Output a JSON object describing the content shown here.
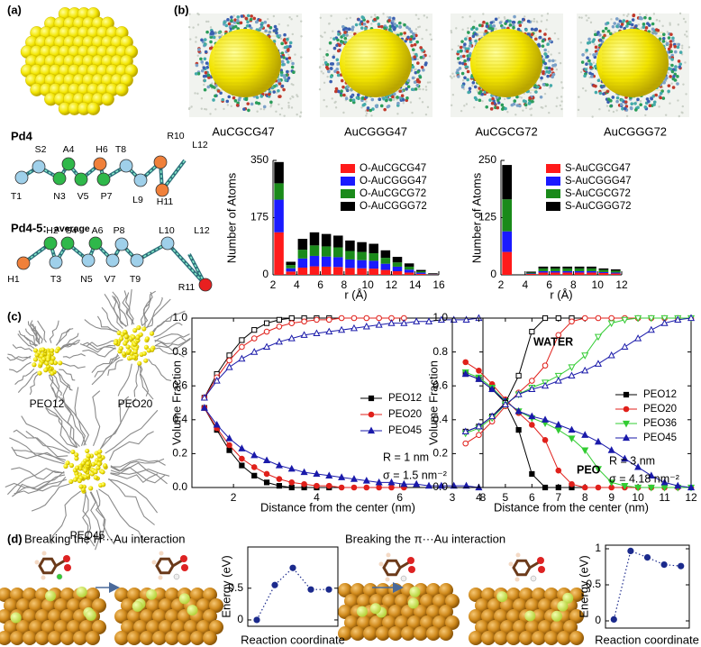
{
  "panels": {
    "a": "(a)",
    "b": "(b)",
    "c": "(c)",
    "d": "(d)"
  },
  "peptides": [
    {
      "title": "Pd4",
      "residues": [
        {
          "label": "T1",
          "color": "#9fd0ea"
        },
        {
          "label": "S2",
          "color": "#9fd0ea"
        },
        {
          "label": "N3",
          "color": "#2fb84a"
        },
        {
          "label": "A4",
          "color": "#2fb84a"
        },
        {
          "label": "V5",
          "color": "#2fb84a"
        },
        {
          "label": "H6",
          "color": "#f0803a"
        },
        {
          "label": "P7",
          "color": "#2fb84a"
        },
        {
          "label": "T8",
          "color": "#9fd0ea"
        },
        {
          "label": "L9",
          "color": "#9fd0ea"
        },
        {
          "label": "R10",
          "color": "#f0803a"
        },
        {
          "label": "H11",
          "color": "#f0803a"
        },
        {
          "label": "L12"
        }
      ]
    },
    {
      "title": "Pd4-5:",
      "subtitle": "average",
      "residues": [
        {
          "label": "H1",
          "color": "#f0803a"
        },
        {
          "label": "H2",
          "color": "#2fb84a"
        },
        {
          "label": "T3",
          "color": "#9fd0ea"
        },
        {
          "label": "S4",
          "color": "#2fb84a"
        },
        {
          "label": "N5",
          "color": "#9fd0ea"
        },
        {
          "label": "A6",
          "color": "#2fb84a"
        },
        {
          "label": "V7",
          "color": "#9fd0ea"
        },
        {
          "label": "P8",
          "color": "#9fd0ea"
        },
        {
          "label": "T9",
          "color": "#9fd0ea"
        },
        {
          "label": "L10",
          "color": "#9fd0ea"
        },
        {
          "label": "R11",
          "color": "#e82020"
        },
        {
          "label": "L12"
        }
      ]
    }
  ],
  "nanoparticles": [
    "AuCGCG47",
    "AuCGGG47",
    "AuCGCG72",
    "AuCGGG72"
  ],
  "peo_images": [
    "PEO12",
    "PEO20",
    "PEO45"
  ],
  "captions": [
    "Breaking the H···Au interaction",
    "Breaking the π···Au interaction"
  ],
  "chart_data": [
    {
      "type": "bar",
      "stacked": true,
      "xlabel": "r (Å)",
      "ylabel": "Number of Atoms",
      "x": [
        2.5,
        3.5,
        4.5,
        5.5,
        6.5,
        7.5,
        8.5,
        9.5,
        10.5,
        11.5,
        12.5,
        13.5,
        14.5,
        15.5
      ],
      "xlim": [
        2,
        16
      ],
      "xticks": [
        2,
        4,
        6,
        8,
        10,
        12,
        14,
        16
      ],
      "ylim": [
        0,
        350
      ],
      "yticks": [
        0,
        175,
        350
      ],
      "series": [
        {
          "name": "O-AuCGCG47",
          "color": "#ff1a1a",
          "values": [
            130,
            10,
            22,
            26,
            25,
            24,
            21,
            20,
            19,
            15,
            11,
            7,
            3,
            1
          ]
        },
        {
          "name": "O-AuCGGG47",
          "color": "#1a1aff",
          "values": [
            100,
            10,
            28,
            32,
            31,
            30,
            26,
            25,
            24,
            19,
            14,
            9,
            4,
            1
          ]
        },
        {
          "name": "O-AuCGCG72",
          "color": "#1a8a1a",
          "values": [
            50,
            10,
            27,
            32,
            31,
            30,
            26,
            25,
            23,
            18,
            13,
            9,
            4,
            1
          ]
        },
        {
          "name": "O-AuCGGG72",
          "color": "#000000",
          "values": [
            65,
            10,
            33,
            40,
            38,
            36,
            32,
            30,
            29,
            23,
            17,
            10,
            4,
            2
          ]
        }
      ]
    },
    {
      "type": "bar",
      "stacked": true,
      "xlabel": "r (Å)",
      "ylabel": "Number of Atoms",
      "x": [
        2.5,
        3.5,
        4.5,
        5.5,
        6.5,
        7.5,
        8.5,
        9.5,
        10.5,
        11.5
      ],
      "xlim": [
        2,
        12
      ],
      "xticks": [
        2,
        4,
        6,
        8,
        10,
        12
      ],
      "ylim": [
        0,
        250
      ],
      "yticks": [
        0,
        125,
        250
      ],
      "series": [
        {
          "name": "S-AuCGCG47",
          "color": "#ff1a1a",
          "values": [
            50,
            0,
            2,
            5,
            5,
            5,
            5,
            5,
            4,
            3
          ]
        },
        {
          "name": "S-AuCGGG47",
          "color": "#1a1aff",
          "values": [
            45,
            0,
            1,
            3,
            3,
            3,
            3,
            3,
            2,
            2
          ]
        },
        {
          "name": "S-AuCGCG72",
          "color": "#1a8a1a",
          "values": [
            70,
            0,
            2,
            6,
            6,
            6,
            6,
            6,
            5,
            4
          ]
        },
        {
          "name": "S-AuCGGG72",
          "color": "#000000",
          "values": [
            75,
            0,
            2,
            4,
            4,
            4,
            4,
            4,
            3,
            3
          ]
        }
      ]
    },
    {
      "type": "line",
      "xlabel": "Distance from the center (nm)",
      "ylabel": "Volume Fraction",
      "x": [
        1.3,
        1.6,
        1.9,
        2.2,
        2.5,
        2.8,
        3.1,
        3.4,
        3.7,
        4,
        4.3,
        4.6,
        4.9,
        5.2,
        5.5,
        5.8,
        6.1,
        6.4,
        6.7,
        7,
        7.3,
        7.6,
        7.9
      ],
      "xlim": [
        1,
        8
      ],
      "xticks": [
        2,
        4,
        6,
        8
      ],
      "ylim": [
        0,
        1
      ],
      "yticks": [
        {
          "value": 0,
          "label": "0.0"
        },
        0.2,
        0.4,
        0.6,
        0.8,
        {
          "value": 1,
          "label": "1.0"
        }
      ],
      "annotations": [
        {
          "text": "R = 1 nm",
          "color": "#1a237e"
        },
        {
          "text": "σ = 1.5 nm⁻²",
          "color": "#1a237e"
        }
      ],
      "series": [
        {
          "name": "PEO12",
          "color": "#000000",
          "marker": "square",
          "filled": true,
          "values": [
            0.47,
            0.34,
            0.22,
            0.13,
            0.07,
            0.03,
            0.01,
            0,
            0,
            0,
            0,
            null,
            null,
            null,
            null,
            null,
            null,
            null,
            null,
            null,
            null,
            null,
            null
          ]
        },
        {
          "name": "PEO20",
          "color": "#e0201b",
          "marker": "circle",
          "filled": true,
          "values": [
            0.47,
            0.35,
            0.25,
            0.17,
            0.12,
            0.08,
            0.05,
            0.03,
            0.02,
            0.01,
            0.01,
            0,
            0,
            0,
            0,
            0,
            0,
            null,
            null,
            null,
            null,
            null,
            null
          ]
        },
        {
          "name": "PEO45",
          "color": "#1a1aaa",
          "marker": "triangle",
          "filled": true,
          "values": [
            0.47,
            0.37,
            0.29,
            0.23,
            0.19,
            0.16,
            0.13,
            0.11,
            0.09,
            0.08,
            0.07,
            0.06,
            0.05,
            0.04,
            0.03,
            0.03,
            0.02,
            0.02,
            0.01,
            0.01,
            0.01,
            0.01,
            0
          ]
        },
        {
          "color": "#000000",
          "marker": "square",
          "filled": false,
          "values": [
            0.53,
            0.67,
            0.78,
            0.87,
            0.93,
            0.97,
            0.99,
            1,
            1,
            1,
            1,
            null,
            null,
            null,
            null,
            null,
            null,
            null,
            null,
            null,
            null,
            null,
            null
          ]
        },
        {
          "color": "#e0201b",
          "marker": "circle",
          "filled": false,
          "values": [
            0.53,
            0.65,
            0.75,
            0.83,
            0.88,
            0.92,
            0.95,
            0.97,
            0.98,
            0.99,
            0.99,
            1,
            1,
            1,
            1,
            1,
            1,
            null,
            null,
            null,
            null,
            null,
            null
          ]
        },
        {
          "color": "#1a1aaa",
          "marker": "triangle",
          "filled": false,
          "values": [
            0.53,
            0.63,
            0.71,
            0.76,
            0.8,
            0.83,
            0.86,
            0.88,
            0.9,
            0.91,
            0.92,
            0.93,
            0.94,
            0.95,
            0.96,
            0.97,
            0.97,
            0.98,
            0.98,
            0.99,
            0.99,
            0.99,
            1
          ]
        }
      ]
    },
    {
      "type": "line",
      "xlabel": "Distance from the center (nm)",
      "ylabel": "Volume Fraction",
      "x": [
        3.5,
        4,
        4.5,
        5,
        5.5,
        6,
        6.5,
        7,
        7.5,
        8,
        8.5,
        9,
        9.5,
        10,
        10.5,
        11,
        11.5,
        12
      ],
      "xlim": [
        3,
        12
      ],
      "xticks": [
        3,
        4,
        5,
        6,
        7,
        8,
        9,
        10,
        11,
        12
      ],
      "ylim": [
        0,
        1
      ],
      "yticks": [
        {
          "value": 0,
          "label": "0.0"
        },
        0.2,
        0.4,
        0.6,
        0.8,
        {
          "value": 1,
          "label": "1.0"
        }
      ],
      "annotations": [
        {
          "text": "WATER",
          "color": "#e0201b"
        },
        {
          "text": "PEO",
          "color": "#22bb22"
        },
        {
          "text": "R = 3 nm",
          "color": "#1a237e"
        },
        {
          "text": "σ = 4.18 nm⁻²",
          "color": "#1a237e"
        }
      ],
      "series": [
        {
          "name": "PEO12",
          "color": "#000000",
          "marker": "square",
          "filled": true,
          "values": [
            0.67,
            0.64,
            0.58,
            0.5,
            0.34,
            0.08,
            0,
            0,
            0,
            null,
            null,
            null,
            null,
            null,
            null,
            null,
            null,
            null
          ]
        },
        {
          "name": "PEO20",
          "color": "#e0201b",
          "marker": "circle",
          "filled": true,
          "values": [
            0.74,
            0.69,
            0.61,
            0.52,
            0.44,
            0.37,
            0.28,
            0.1,
            0.02,
            0,
            0,
            0,
            0,
            0,
            0,
            0,
            0,
            0
          ]
        },
        {
          "name": "PEO36",
          "color": "#33cc33",
          "marker": "triangle-down",
          "filled": true,
          "values": [
            0.68,
            0.65,
            0.59,
            0.51,
            0.45,
            0.41,
            0.38,
            0.34,
            0.29,
            0.22,
            0.11,
            0.03,
            0.01,
            0,
            0,
            0,
            0,
            0
          ]
        },
        {
          "name": "PEO45",
          "color": "#1a1aaa",
          "marker": "triangle",
          "filled": true,
          "values": [
            0.67,
            0.64,
            0.58,
            0.51,
            0.45,
            0.42,
            0.4,
            0.37,
            0.34,
            0.31,
            0.27,
            0.22,
            0.17,
            0.12,
            0.07,
            0.03,
            0.01,
            0
          ]
        },
        {
          "color": "#000000",
          "marker": "square",
          "filled": false,
          "values": [
            0.33,
            0.36,
            0.42,
            0.5,
            0.66,
            0.92,
            1,
            1,
            1,
            null,
            null,
            null,
            null,
            null,
            null,
            null,
            null,
            null
          ]
        },
        {
          "color": "#e0201b",
          "marker": "circle",
          "filled": false,
          "values": [
            0.26,
            0.31,
            0.39,
            0.48,
            0.56,
            0.63,
            0.72,
            0.9,
            0.98,
            1,
            1,
            1,
            1,
            1,
            1,
            1,
            1,
            1
          ]
        },
        {
          "color": "#33cc33",
          "marker": "triangle-down",
          "filled": false,
          "values": [
            0.32,
            0.35,
            0.41,
            0.49,
            0.55,
            0.59,
            0.62,
            0.66,
            0.71,
            0.78,
            0.89,
            0.97,
            0.99,
            1,
            1,
            1,
            1,
            1
          ]
        },
        {
          "color": "#1a1aaa",
          "marker": "triangle",
          "filled": false,
          "values": [
            0.33,
            0.36,
            0.42,
            0.49,
            0.55,
            0.58,
            0.6,
            0.63,
            0.66,
            0.69,
            0.73,
            0.78,
            0.83,
            0.88,
            0.93,
            0.97,
            0.99,
            1
          ]
        }
      ]
    },
    {
      "type": "scatter",
      "line_style": "dotted",
      "color": "#1b2a8c",
      "xlabel": "Reaction coordinate",
      "ylabel": "Energy (eV)",
      "x": [
        1,
        2,
        3,
        4,
        5
      ],
      "values": [
        0,
        0.55,
        0.82,
        0.48,
        0.48
      ],
      "xlim": [
        0.5,
        5.5
      ],
      "ylim": [
        -0.1,
        1.15
      ],
      "yticks": [
        0,
        0.5
      ]
    },
    {
      "type": "scatter",
      "line_style": "dotted",
      "color": "#1b2a8c",
      "xlabel": "Reaction coordinate",
      "ylabel": "Energy (eV)",
      "x": [
        1,
        2,
        3,
        4,
        5
      ],
      "values": [
        0.02,
        0.97,
        0.88,
        0.78,
        0.76
      ],
      "xlim": [
        0.5,
        5.5
      ],
      "ylim": [
        -0.1,
        1.05
      ],
      "yticks": [
        0,
        0.5,
        1
      ]
    }
  ]
}
